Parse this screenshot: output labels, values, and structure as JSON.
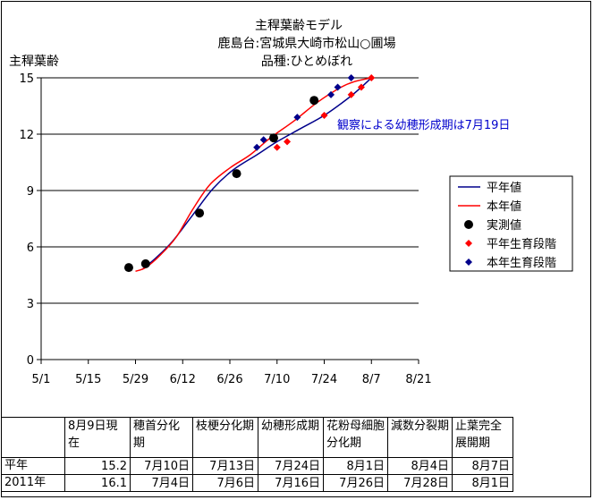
{
  "chart_data": {
    "type": "line",
    "title": [
      "主稈葉齢モデル",
      "鹿島台:宮城県大崎市松山○圃場",
      "品種:ひとめぼれ"
    ],
    "ylabel": "主稈葉齢",
    "xlabel": "",
    "x_axis": {
      "start_date": "2011-05-01",
      "ticks": [
        "2011-05-01",
        "2011-05-15",
        "2011-05-29",
        "2011-06-12",
        "2011-06-26",
        "2011-07-10",
        "2011-07-24",
        "2011-08-07",
        "2011-08-21"
      ],
      "tick_labels": [
        "5/1",
        "5/15",
        "5/29",
        "6/12",
        "6/26",
        "7/10",
        "7/24",
        "8/7",
        "8/21"
      ],
      "range": [
        "2011-05-01",
        "2011-08-21"
      ]
    },
    "ylim": [
      0,
      15
    ],
    "yticks": [
      0,
      3,
      6,
      9,
      12,
      15
    ],
    "grid": "horizontal",
    "legend_position": "right",
    "series": [
      {
        "name": "平年値",
        "kind": "line",
        "color": "#00008b",
        "points": [
          [
            "2011-05-31",
            4.8
          ],
          [
            "2011-06-04",
            5.4
          ],
          [
            "2011-06-09",
            6.3
          ],
          [
            "2011-06-15",
            7.7
          ],
          [
            "2011-06-21",
            9.1
          ],
          [
            "2011-06-27",
            10.1
          ],
          [
            "2011-07-04",
            10.9
          ],
          [
            "2011-07-10",
            11.6
          ],
          [
            "2011-07-17",
            12.3
          ],
          [
            "2011-07-24",
            13.0
          ],
          [
            "2011-07-31",
            13.9
          ],
          [
            "2011-08-04",
            14.5
          ],
          [
            "2011-08-07",
            15.0
          ]
        ]
      },
      {
        "name": "本年値",
        "kind": "line",
        "color": "#ff0000",
        "points": [
          [
            "2011-05-29",
            4.7
          ],
          [
            "2011-06-01",
            4.9
          ],
          [
            "2011-06-05",
            5.5
          ],
          [
            "2011-06-10",
            6.5
          ],
          [
            "2011-06-15",
            8.0
          ],
          [
            "2011-06-20",
            9.3
          ],
          [
            "2011-06-26",
            10.2
          ],
          [
            "2011-07-02",
            10.9
          ],
          [
            "2011-07-08",
            11.8
          ],
          [
            "2011-07-15",
            12.7
          ],
          [
            "2011-07-22",
            13.7
          ],
          [
            "2011-07-29",
            14.5
          ],
          [
            "2011-08-02",
            14.8
          ],
          [
            "2011-08-07",
            15.0
          ]
        ]
      },
      {
        "name": "実測値",
        "kind": "marker",
        "marker": "circle",
        "color": "#000000",
        "points": [
          [
            "2011-05-27",
            4.9
          ],
          [
            "2011-06-01",
            5.1
          ],
          [
            "2011-06-17",
            7.8
          ],
          [
            "2011-06-28",
            9.9
          ],
          [
            "2011-07-09",
            11.8
          ],
          [
            "2011-07-21",
            13.8
          ]
        ]
      },
      {
        "name": "平年生育段階",
        "kind": "marker",
        "marker": "diamond",
        "color": "#ff0000",
        "points": [
          [
            "2011-07-10",
            11.3
          ],
          [
            "2011-07-13",
            11.6
          ],
          [
            "2011-07-24",
            13.0
          ],
          [
            "2011-08-01",
            14.1
          ],
          [
            "2011-08-04",
            14.5
          ],
          [
            "2011-08-07",
            15.0
          ]
        ]
      },
      {
        "name": "本年生育段階",
        "kind": "marker",
        "marker": "diamond",
        "color": "#00008b",
        "points": [
          [
            "2011-07-04",
            11.3
          ],
          [
            "2011-07-06",
            11.7
          ],
          [
            "2011-07-16",
            12.9
          ],
          [
            "2011-07-26",
            14.1
          ],
          [
            "2011-07-28",
            14.5
          ],
          [
            "2011-08-01",
            15.0
          ]
        ]
      }
    ],
    "annotation": "観察による幼穂形成期は7月19日"
  },
  "stage_table": {
    "headers": [
      "",
      "8月9日現在",
      "穂首分化期",
      "枝梗分化期",
      "幼穂形成期",
      "花粉母細胞分化期",
      "減数分裂期",
      "止葉完全展開期"
    ],
    "rows": [
      [
        "平年",
        "15.2",
        "7月10日",
        "7月13日",
        "7月24日",
        "8月1日",
        "8月4日",
        "8月7日"
      ],
      [
        "2011年",
        "16.1",
        "7月4日",
        "7月6日",
        "7月16日",
        "7月26日",
        "7月28日",
        "8月1日"
      ]
    ]
  }
}
